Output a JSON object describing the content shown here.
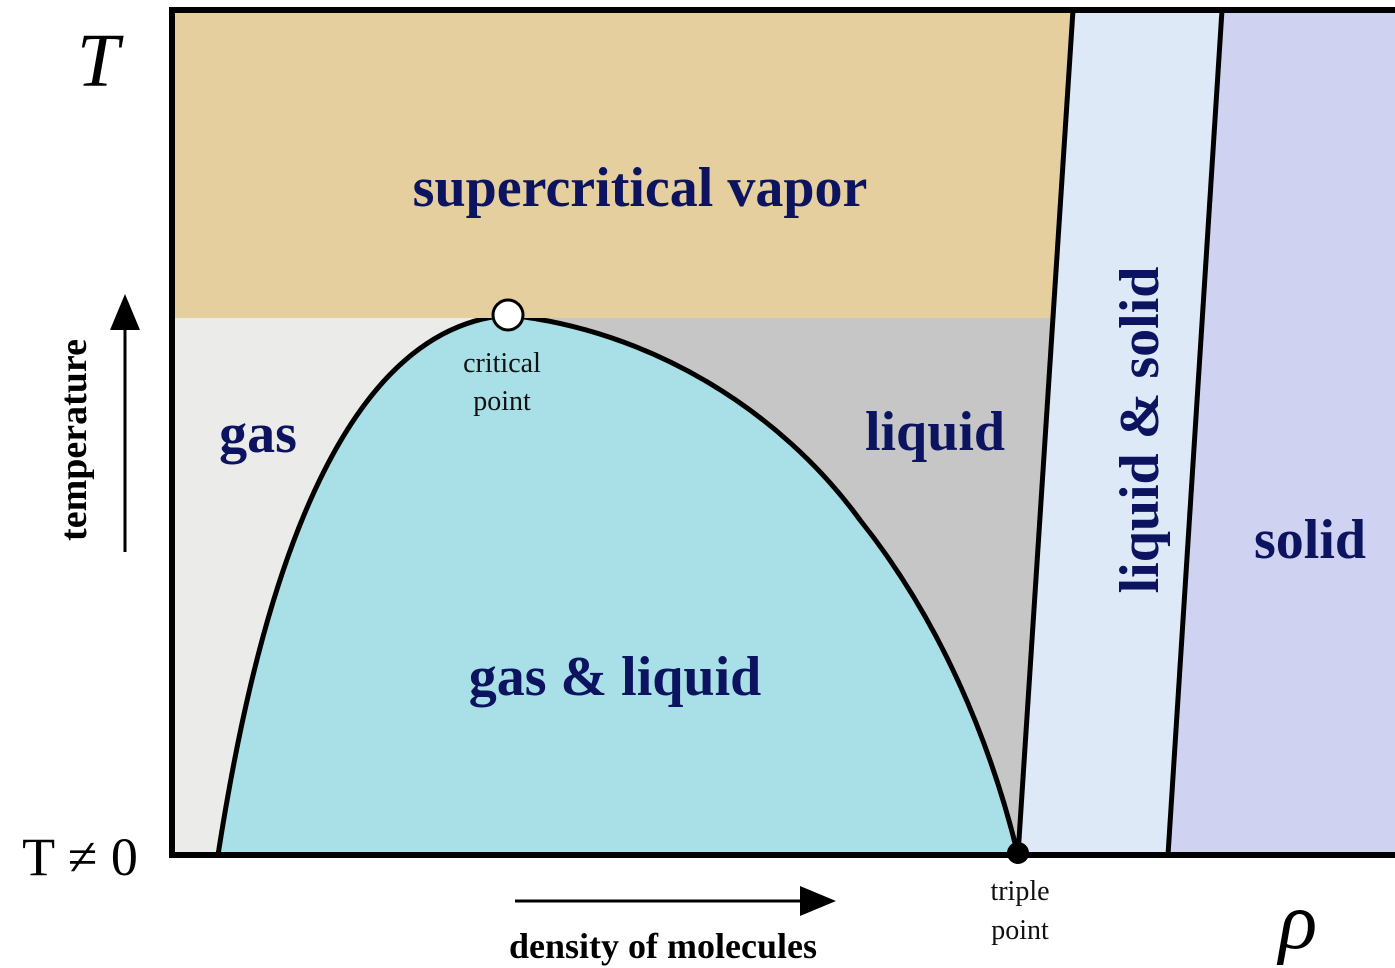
{
  "axes": {
    "y_symbol": "T",
    "y_origin": "T ≠ 0",
    "y_label": "temperature",
    "x_label": "density of molecules",
    "x_symbol": "ρ"
  },
  "regions": {
    "supercritical": "supercritical vapor",
    "gas": "gas",
    "liquid": "liquid",
    "gas_liquid": "gas & liquid",
    "liquid_solid": "liquid & solid",
    "solid": "solid"
  },
  "points": {
    "critical": [
      "critical",
      "point"
    ],
    "triple": [
      "triple",
      "point"
    ]
  }
}
